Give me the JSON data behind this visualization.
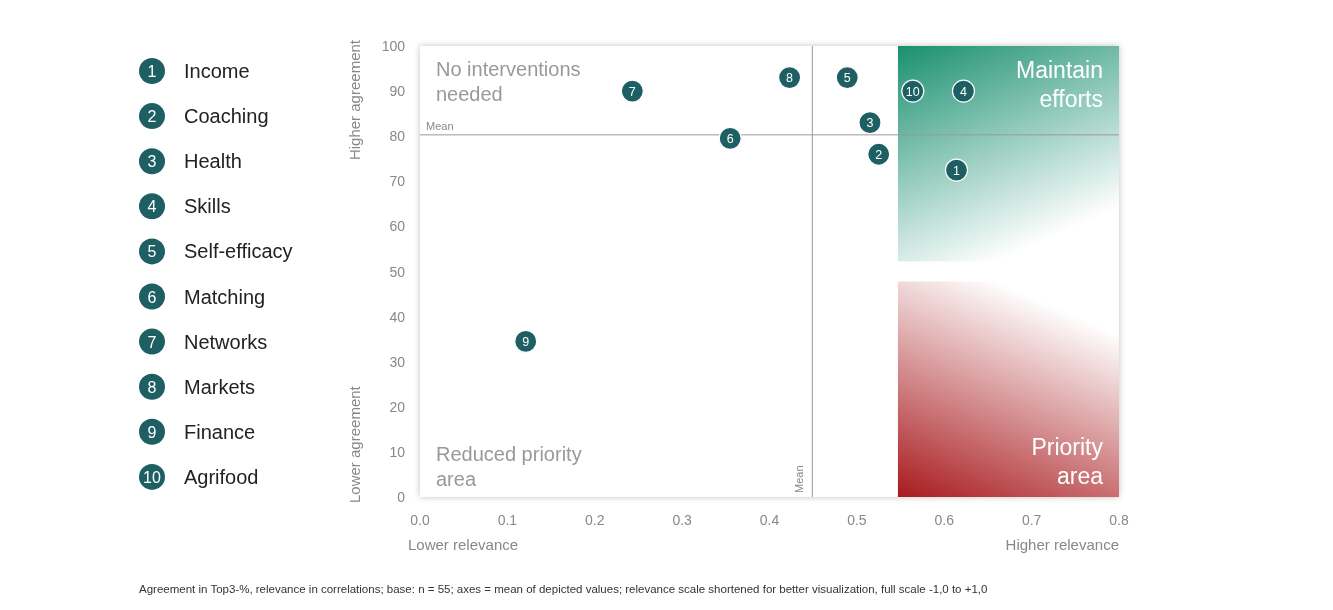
{
  "chart_data": {
    "type": "scatter",
    "xlim": [
      0,
      0.8
    ],
    "ylim": [
      0,
      100
    ],
    "xticks": [
      {
        "value": 0,
        "label": "0.0"
      },
      0.1,
      0.2,
      0.3,
      0.4,
      0.5,
      0.6,
      0.7,
      0.8
    ],
    "yticks": [
      0,
      10,
      20,
      30,
      40,
      50,
      60,
      70,
      80,
      90,
      100
    ],
    "legend": "left",
    "series": [
      {
        "name": "Income",
        "color": "#1e5f63",
        "x": [
          0.614
        ],
        "values": [
          72.5
        ]
      },
      {
        "name": "Coaching",
        "color": "#1e5f63",
        "x": [
          0.525
        ],
        "values": [
          76
        ]
      },
      {
        "name": "Health",
        "color": "#1e5f63",
        "x": [
          0.515
        ],
        "values": [
          83
        ]
      },
      {
        "name": "Skills",
        "color": "#1e5f63",
        "x": [
          0.622
        ],
        "values": [
          90
        ]
      },
      {
        "name": "Self-efficacy",
        "color": "#1e5f63",
        "x": [
          0.489
        ],
        "values": [
          93
        ]
      },
      {
        "name": "Matching",
        "color": "#1e5f63",
        "x": [
          0.355
        ],
        "values": [
          79.5
        ]
      },
      {
        "name": "Networks",
        "color": "#1e5f63",
        "x": [
          0.243
        ],
        "values": [
          90
        ]
      },
      {
        "name": "Markets",
        "color": "#1e5f63",
        "x": [
          0.423
        ],
        "values": [
          93
        ]
      },
      {
        "name": "Finance",
        "color": "#1e5f63",
        "x": [
          0.121
        ],
        "values": [
          34.5
        ]
      },
      {
        "name": "Agrifood",
        "color": "#1e5f63",
        "x": [
          0.564
        ],
        "values": [
          90
        ]
      }
    ],
    "ref_lines": [
      {
        "axis": "x",
        "value": 0.449,
        "label": "Mean"
      },
      {
        "axis": "y",
        "value": 80.3,
        "label": "Mean"
      }
    ],
    "bands": [
      {
        "axis": "x",
        "from": 0.547,
        "to": 0.8,
        "label": "Maintain efforts",
        "color": "#1a9070"
      },
      {
        "axis": "x",
        "from": 0.547,
        "to": 0.8,
        "label": "Priority area",
        "color": "#a81a1e"
      }
    ],
    "annotations": [
      "No interventions needed",
      "Reduced priority area",
      "Lower relevance",
      "Higher relevance",
      "Higher agreement",
      "Lower agreement",
      "Agreement in Top3-%, relevance in correlations; base: n = 55; axes = mean of depicted values; relevance scale shortened for better visualization, full scale -1,0 to +1,0",
      {
        "text": "1",
        "x": 0.614,
        "y": 72.5
      },
      {
        "text": "2",
        "x": 0.525,
        "y": 76
      },
      {
        "text": "3",
        "x": 0.515,
        "y": 83
      },
      {
        "text": "4",
        "x": 0.622,
        "y": 90
      },
      {
        "text": "5",
        "x": 0.489,
        "y": 93
      },
      {
        "text": "6",
        "x": 0.355,
        "y": 79.5
      },
      {
        "text": "7",
        "x": 0.243,
        "y": 90
      },
      {
        "text": "8",
        "x": 0.423,
        "y": 93
      },
      {
        "text": "9",
        "x": 0.121,
        "y": 34.5
      },
      {
        "text": "10",
        "x": 0.564,
        "y": 90
      }
    ]
  }
}
